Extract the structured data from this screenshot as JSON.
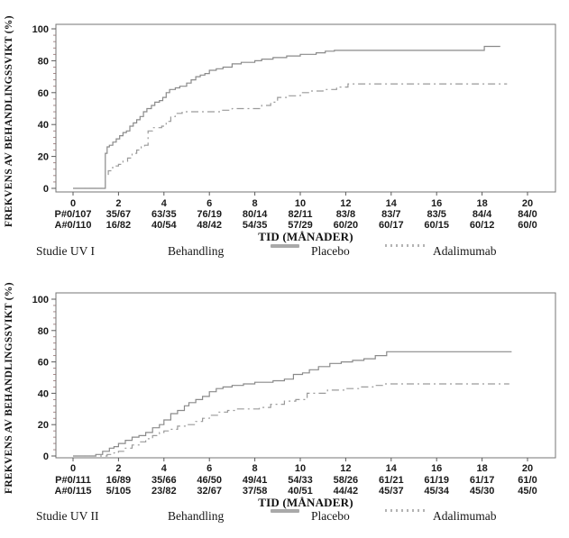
{
  "page": {
    "background": "#ffffff"
  },
  "chart_data": [
    {
      "type": "line",
      "step": true,
      "title": "Studie UV I",
      "ylabel": "FREKVENS AV BEHANDLINGSSVIKT (%)",
      "xlabel": "TID (MÅNADER)",
      "xlim": [
        0,
        21
      ],
      "ylim": [
        0,
        100
      ],
      "xticks": [
        0,
        2,
        4,
        6,
        8,
        10,
        12,
        14,
        16,
        18,
        20
      ],
      "yticks": [
        0,
        20,
        40,
        60,
        80,
        100
      ],
      "y_minor_step": 4,
      "grid": false,
      "legend_position": "below",
      "footer": {
        "study": "Studie UV I",
        "treatment": "Behandling",
        "placebo": "Placebo",
        "adalimumab": "Adalimumab"
      },
      "series": [
        {
          "name": "Placebo",
          "line": "solid",
          "color": "#8a8a8a",
          "points": [
            [
              0,
              0
            ],
            [
              1.38,
              0
            ],
            [
              1.42,
              22
            ],
            [
              1.5,
              26
            ],
            [
              1.6,
              27
            ],
            [
              1.75,
              29
            ],
            [
              1.9,
              31
            ],
            [
              2.05,
              33
            ],
            [
              2.2,
              35
            ],
            [
              2.35,
              36
            ],
            [
              2.5,
              39
            ],
            [
              2.65,
              41
            ],
            [
              2.8,
              43
            ],
            [
              2.95,
              45
            ],
            [
              3.1,
              48
            ],
            [
              3.25,
              50
            ],
            [
              3.45,
              52
            ],
            [
              3.6,
              54
            ],
            [
              3.8,
              55
            ],
            [
              3.95,
              57
            ],
            [
              4.1,
              60
            ],
            [
              4.25,
              62
            ],
            [
              4.5,
              63
            ],
            [
              4.7,
              64
            ],
            [
              5.0,
              66
            ],
            [
              5.2,
              68
            ],
            [
              5.4,
              70
            ],
            [
              5.6,
              71
            ],
            [
              5.8,
              72
            ],
            [
              6.0,
              74
            ],
            [
              6.3,
              75
            ],
            [
              6.6,
              76
            ],
            [
              7.0,
              78
            ],
            [
              7.4,
              79
            ],
            [
              8.0,
              80
            ],
            [
              8.3,
              81
            ],
            [
              8.8,
              82
            ],
            [
              9.4,
              83
            ],
            [
              10.0,
              84
            ],
            [
              10.7,
              85
            ],
            [
              11.1,
              86
            ],
            [
              11.5,
              86.5
            ],
            [
              17.9,
              86.5
            ],
            [
              18.1,
              89
            ],
            [
              18.8,
              89
            ]
          ]
        },
        {
          "name": "Adalimumab",
          "line": "dash-dot",
          "color": "#9a9a9a",
          "points": [
            [
              0,
              0
            ],
            [
              1.38,
              0
            ],
            [
              1.42,
              8
            ],
            [
              1.55,
              11
            ],
            [
              1.7,
              13
            ],
            [
              1.85,
              14
            ],
            [
              2.0,
              15
            ],
            [
              2.2,
              17
            ],
            [
              2.4,
              19
            ],
            [
              2.6,
              22
            ],
            [
              2.8,
              24
            ],
            [
              3.0,
              26
            ],
            [
              3.15,
              27
            ],
            [
              3.3,
              36
            ],
            [
              3.5,
              38
            ],
            [
              3.9,
              39
            ],
            [
              4.1,
              42
            ],
            [
              4.3,
              45
            ],
            [
              4.5,
              47
            ],
            [
              4.8,
              48
            ],
            [
              6.2,
              48
            ],
            [
              6.5,
              49
            ],
            [
              7.0,
              50
            ],
            [
              7.8,
              50
            ],
            [
              8.3,
              52
            ],
            [
              8.7,
              54
            ],
            [
              9.0,
              57
            ],
            [
              9.5,
              58
            ],
            [
              10.0,
              60
            ],
            [
              10.5,
              61
            ],
            [
              11.0,
              62
            ],
            [
              11.6,
              63.5
            ],
            [
              12.1,
              65.5
            ],
            [
              19.1,
              65.5
            ]
          ]
        }
      ],
      "risk_rows": [
        {
          "name": "P#",
          "values": [
            "P#0/107",
            "35/67",
            "63/35",
            "76/19",
            "80/14",
            "82/11",
            "83/8",
            "83/7",
            "83/5",
            "84/4",
            "84/0"
          ]
        },
        {
          "name": "A#",
          "values": [
            "A#0/110",
            "16/82",
            "40/54",
            "48/42",
            "54/35",
            "57/29",
            "60/20",
            "60/17",
            "60/15",
            "60/12",
            "60/0"
          ]
        }
      ]
    },
    {
      "type": "line",
      "step": true,
      "title": "Studie UV II",
      "ylabel": "FREKVENS AV BEHANDLINGSSVIKT (%)",
      "xlabel": "TID (MÅNADER)",
      "xlim": [
        0,
        21
      ],
      "ylim": [
        0,
        100
      ],
      "xticks": [
        0,
        2,
        4,
        6,
        8,
        10,
        12,
        14,
        16,
        18,
        20
      ],
      "yticks": [
        0,
        20,
        40,
        60,
        80,
        100
      ],
      "y_minor_step": 4,
      "grid": false,
      "legend_position": "below",
      "footer": {
        "study": "Studie UV II",
        "treatment": "Behandling",
        "placebo": "Placebo",
        "adalimumab": "Adalimumab"
      },
      "series": [
        {
          "name": "Placebo",
          "line": "solid",
          "color": "#8a8a8a",
          "points": [
            [
              0,
              0
            ],
            [
              0.9,
              0
            ],
            [
              1.0,
              1
            ],
            [
              1.3,
              3
            ],
            [
              1.6,
              5
            ],
            [
              1.8,
              6
            ],
            [
              2.0,
              8
            ],
            [
              2.3,
              10
            ],
            [
              2.6,
              12
            ],
            [
              2.9,
              13
            ],
            [
              3.2,
              15
            ],
            [
              3.5,
              18
            ],
            [
              3.8,
              20
            ],
            [
              4.0,
              23
            ],
            [
              4.3,
              27
            ],
            [
              4.6,
              29
            ],
            [
              4.9,
              32
            ],
            [
              5.1,
              34
            ],
            [
              5.4,
              36
            ],
            [
              5.7,
              38
            ],
            [
              6.0,
              41
            ],
            [
              6.3,
              43
            ],
            [
              6.6,
              44
            ],
            [
              7.0,
              45
            ],
            [
              7.5,
              46
            ],
            [
              8.0,
              47
            ],
            [
              8.8,
              48
            ],
            [
              9.3,
              49
            ],
            [
              9.7,
              52
            ],
            [
              10.1,
              53
            ],
            [
              10.4,
              55
            ],
            [
              10.8,
              57
            ],
            [
              11.3,
              59
            ],
            [
              11.8,
              60
            ],
            [
              12.3,
              61
            ],
            [
              12.8,
              62
            ],
            [
              13.3,
              64
            ],
            [
              13.8,
              66.5
            ],
            [
              19.3,
              66.5
            ]
          ]
        },
        {
          "name": "Adalimumab",
          "line": "dash-dot",
          "color": "#9a9a9a",
          "points": [
            [
              0,
              0
            ],
            [
              1.4,
              0
            ],
            [
              1.5,
              1
            ],
            [
              1.8,
              2
            ],
            [
              2.0,
              3
            ],
            [
              2.3,
              5
            ],
            [
              2.6,
              7
            ],
            [
              2.9,
              9
            ],
            [
              3.2,
              11
            ],
            [
              3.5,
              13
            ],
            [
              3.8,
              15
            ],
            [
              4.0,
              16
            ],
            [
              4.3,
              17
            ],
            [
              4.6,
              19
            ],
            [
              5.0,
              20
            ],
            [
              5.4,
              22
            ],
            [
              5.7,
              24
            ],
            [
              6.0,
              26
            ],
            [
              6.4,
              28
            ],
            [
              6.8,
              29
            ],
            [
              7.2,
              30
            ],
            [
              8.2,
              31
            ],
            [
              8.7,
              33
            ],
            [
              9.3,
              35
            ],
            [
              9.8,
              36
            ],
            [
              10.3,
              40
            ],
            [
              11.2,
              42
            ],
            [
              12.0,
              43
            ],
            [
              12.7,
              44
            ],
            [
              13.2,
              45
            ],
            [
              13.7,
              46
            ],
            [
              19.2,
              46
            ]
          ]
        }
      ],
      "risk_rows": [
        {
          "name": "P#",
          "values": [
            "P#0/111",
            "16/89",
            "35/66",
            "46/50",
            "49/41",
            "54/33",
            "58/26",
            "61/21",
            "61/19",
            "61/17",
            "61/0"
          ]
        },
        {
          "name": "A#",
          "values": [
            "A#0/115",
            "5/105",
            "23/82",
            "32/67",
            "37/58",
            "40/51",
            "44/42",
            "45/37",
            "45/34",
            "45/30",
            "45/0"
          ]
        }
      ]
    }
  ]
}
